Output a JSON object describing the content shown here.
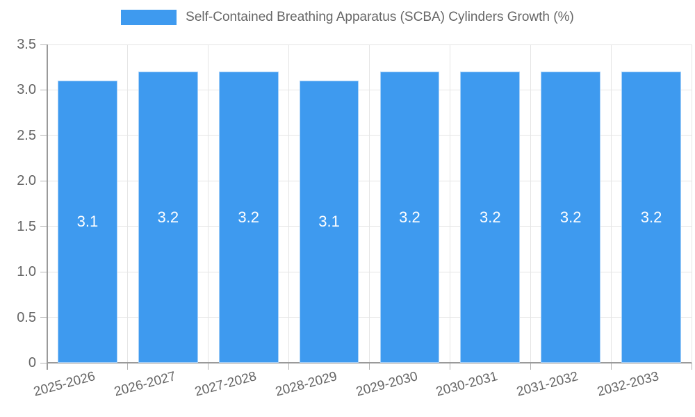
{
  "legend": {
    "label": "Self-Contained Breathing Apparatus (SCBA) Cylinders Growth (%)"
  },
  "chart_data": {
    "type": "bar",
    "title": "Self-Contained Breathing Apparatus (SCBA) Cylinders Growth (%)",
    "categories": [
      "2025-2026",
      "2026-2027",
      "2027-2028",
      "2028-2029",
      "2029-2030",
      "2030-2031",
      "2031-2032",
      "2032-2033"
    ],
    "values": [
      3.1,
      3.2,
      3.2,
      3.1,
      3.2,
      3.2,
      3.2,
      3.2
    ],
    "bar_labels": [
      "3.1",
      "3.2",
      "3.2",
      "3.1",
      "3.2",
      "3.2",
      "3.2",
      "3.2"
    ],
    "xlabel": "",
    "ylabel": "",
    "ylim": [
      0,
      3.5
    ],
    "ytick_step": 0.5,
    "yticks": [
      "3.5",
      "3.0",
      "2.5",
      "2.0",
      "1.5",
      "1.0",
      "0.5",
      "0"
    ],
    "grid": true,
    "legend_position": "top",
    "colors": {
      "bar": "#3E9AEF",
      "grid": "#e5e5e5",
      "axis": "#9a9a9a",
      "tick": "#b3b3b3",
      "tick_label": "#666666",
      "bar_label": "#ffffff",
      "legend_label": "#666666",
      "background": "#ffffff"
    }
  }
}
